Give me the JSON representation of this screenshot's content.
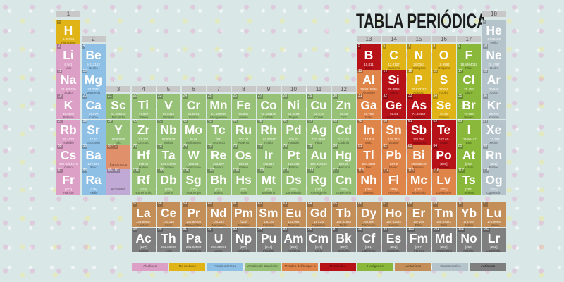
{
  "title": "TABLA PERIÓDICA",
  "group_labels": [
    "1",
    "2",
    "3",
    "4",
    "5",
    "6",
    "7",
    "8",
    "9",
    "10",
    "11",
    "12",
    "13",
    "14",
    "15",
    "16",
    "17",
    "18"
  ],
  "categories": {
    "alk": {
      "label": "Alcalinos",
      "color": "#dc9fc6"
    },
    "nm": {
      "label": "No metales",
      "color": "#e0b416"
    },
    "ae": {
      "label": "Alcalinotérreos",
      "color": "#8ec0e6"
    },
    "tm": {
      "label": "Metales de transición",
      "color": "#97c177"
    },
    "pb": {
      "label": "Metales del bloque p",
      "color": "#df854a"
    },
    "mtd": {
      "label": "Metaloides",
      "color": "#b81219"
    },
    "hal": {
      "label": "Halógenos",
      "color": "#8ab83a"
    },
    "lan": {
      "label": "Lantánidos",
      "color": "#c38e58"
    },
    "ng": {
      "label": "Gases nobles",
      "color": "#b5c3cb"
    },
    "act": {
      "label": "Actínidos",
      "color": "#7f7f7f"
    }
  },
  "legend_order": [
    "alk",
    "nm",
    "ae",
    "tm",
    "pb",
    "mtd",
    "hal",
    "lan",
    "ng",
    "act"
  ],
  "placeholders": [
    {
      "range": "57-71",
      "label": "Lantánidos",
      "color": "#e0906a",
      "period": 6,
      "group": 3
    },
    {
      "range": "89-103",
      "label": "Actínidos",
      "color": "#c0a9d4",
      "period": 7,
      "group": 3
    }
  ],
  "elements": [
    [
      "1",
      "H",
      "1.00794",
      "Hidrógeno",
      "nm",
      1,
      1
    ],
    [
      "2",
      "He",
      "4.002602",
      "Helio",
      "ng",
      1,
      18
    ],
    [
      "3",
      "Li",
      "6.941",
      "Litio",
      "alk",
      2,
      1
    ],
    [
      "4",
      "Be",
      "9.012182",
      "Berilio",
      "ae",
      2,
      2
    ],
    [
      "5",
      "B",
      "10.811",
      "Boro",
      "mtd",
      2,
      13
    ],
    [
      "6",
      "C",
      "12.0107",
      "Carbono",
      "nm",
      2,
      14
    ],
    [
      "7",
      "N",
      "14.0067",
      "Nitrógeno",
      "nm",
      2,
      15
    ],
    [
      "8",
      "O",
      "15.9994",
      "Oxígeno",
      "nm",
      2,
      16
    ],
    [
      "9",
      "F",
      "18.9984032",
      "Flúor",
      "hal",
      2,
      17
    ],
    [
      "10",
      "Ne",
      "20.1797",
      "Neón",
      "ng",
      2,
      18
    ],
    [
      "11",
      "Na",
      "22.989769",
      "Sodio",
      "alk",
      3,
      1
    ],
    [
      "12",
      "Mg",
      "24.3050",
      "Magnesio",
      "ae",
      3,
      2
    ],
    [
      "13",
      "Al",
      "26.9815386",
      "Aluminio",
      "pb",
      3,
      13
    ],
    [
      "14",
      "Si",
      "28.0855",
      "Silicio",
      "mtd",
      3,
      14
    ],
    [
      "15",
      "P",
      "30.973762",
      "Fósforo",
      "nm",
      3,
      15
    ],
    [
      "16",
      "S",
      "32.065",
      "Azufre",
      "nm",
      3,
      16
    ],
    [
      "17",
      "Cl",
      "35.453",
      "Cloro",
      "hal",
      3,
      17
    ],
    [
      "18",
      "Ar",
      "39.948",
      "Argón",
      "ng",
      3,
      18
    ],
    [
      "19",
      "K",
      "39.0983",
      "Potasio",
      "alk",
      4,
      1
    ],
    [
      "20",
      "Ca",
      "40.078",
      "Calcio",
      "ae",
      4,
      2
    ],
    [
      "21",
      "Sc",
      "44.955912",
      "Escandio",
      "tm",
      4,
      3
    ],
    [
      "22",
      "Ti",
      "47.867",
      "Titanio",
      "tm",
      4,
      4
    ],
    [
      "23",
      "V",
      "50.9415",
      "Vanadio",
      "tm",
      4,
      5
    ],
    [
      "24",
      "Cr",
      "51.9961",
      "Cromo",
      "tm",
      4,
      6
    ],
    [
      "25",
      "Mn",
      "54.938045",
      "Manganeso",
      "tm",
      4,
      7
    ],
    [
      "26",
      "Fe",
      "55.845",
      "Hierro",
      "tm",
      4,
      8
    ],
    [
      "27",
      "Co",
      "58.933195",
      "Cobalto",
      "tm",
      4,
      9
    ],
    [
      "28",
      "Ni",
      "58.6934",
      "Níquel",
      "tm",
      4,
      10
    ],
    [
      "29",
      "Cu",
      "63.546",
      "Cobre",
      "tm",
      4,
      11
    ],
    [
      "30",
      "Zn",
      "65.38",
      "Cinc",
      "tm",
      4,
      12
    ],
    [
      "31",
      "Ga",
      "69.723",
      "Galio",
      "pb",
      4,
      13
    ],
    [
      "32",
      "Ge",
      "72.64",
      "Germanio",
      "mtd",
      4,
      14
    ],
    [
      "33",
      "As",
      "74.92160",
      "Arsénico",
      "mtd",
      4,
      15
    ],
    [
      "34",
      "Se",
      "78.96",
      "Selenio",
      "nm",
      4,
      16
    ],
    [
      "35",
      "Br",
      "79.904",
      "Bromo",
      "hal",
      4,
      17
    ],
    [
      "36",
      "Kr",
      "83.798",
      "Kriptón",
      "ng",
      4,
      18
    ],
    [
      "37",
      "Rb",
      "85.4678",
      "Rubidio",
      "alk",
      5,
      1
    ],
    [
      "38",
      "Sr",
      "87.62",
      "Estroncio",
      "ae",
      5,
      2
    ],
    [
      "39",
      "Y",
      "88.90585",
      "Itrio",
      "tm",
      5,
      3
    ],
    [
      "40",
      "Zr",
      "91.224",
      "Circonio",
      "tm",
      5,
      4
    ],
    [
      "41",
      "Nb",
      "92.90638",
      "Niobio",
      "tm",
      5,
      5
    ],
    [
      "42",
      "Mo",
      "95.96",
      "Molibdeno",
      "tm",
      5,
      6
    ],
    [
      "43",
      "Tc",
      "[98]",
      "Tecnecio",
      "tm",
      5,
      7
    ],
    [
      "44",
      "Ru",
      "101.07",
      "Rutenio",
      "tm",
      5,
      8
    ],
    [
      "45",
      "Rh",
      "102.90550",
      "Rodio",
      "tm",
      5,
      9
    ],
    [
      "46",
      "Pd",
      "106.42",
      "Paladio",
      "tm",
      5,
      10
    ],
    [
      "47",
      "Ag",
      "107.8682",
      "Plata",
      "tm",
      5,
      11
    ],
    [
      "48",
      "Cd",
      "112.411",
      "Cadmio",
      "tm",
      5,
      12
    ],
    [
      "49",
      "In",
      "114.818",
      "Indio",
      "pb",
      5,
      13
    ],
    [
      "50",
      "Sn",
      "118.710",
      "Estaño",
      "pb",
      5,
      14
    ],
    [
      "51",
      "Sb",
      "121.760",
      "Antimonio",
      "mtd",
      5,
      15
    ],
    [
      "52",
      "Te",
      "127.60",
      "Telurio",
      "mtd",
      5,
      16
    ],
    [
      "53",
      "I",
      "126.90447",
      "Yodo",
      "hal",
      5,
      17
    ],
    [
      "54",
      "Xe",
      "131.293",
      "Xenón",
      "ng",
      5,
      18
    ],
    [
      "55",
      "Cs",
      "132.9054519",
      "Cesio",
      "alk",
      6,
      1
    ],
    [
      "56",
      "Ba",
      "137.327",
      "Bario",
      "ae",
      6,
      2
    ],
    [
      "72",
      "Hf",
      "178.49",
      "Hafnio",
      "tm",
      6,
      4
    ],
    [
      "73",
      "Ta",
      "180.94788",
      "Tantalio",
      "tm",
      6,
      5
    ],
    [
      "74",
      "W",
      "183.84",
      "Wolframio",
      "tm",
      6,
      6
    ],
    [
      "75",
      "Re",
      "186.207",
      "Renio",
      "tm",
      6,
      7
    ],
    [
      "76",
      "Os",
      "190.23",
      "Osmio",
      "tm",
      6,
      8
    ],
    [
      "77",
      "Ir",
      "192.217",
      "Iridio",
      "tm",
      6,
      9
    ],
    [
      "78",
      "Pt",
      "195.084",
      "Platino",
      "tm",
      6,
      10
    ],
    [
      "79",
      "Au",
      "196.966569",
      "Oro",
      "tm",
      6,
      11
    ],
    [
      "80",
      "Hg",
      "200.59",
      "Mercurio",
      "tm",
      6,
      12
    ],
    [
      "81",
      "Tl",
      "204.3833",
      "Talio",
      "pb",
      6,
      13
    ],
    [
      "82",
      "Pb",
      "207.2",
      "Plomo",
      "pb",
      6,
      14
    ],
    [
      "83",
      "Bi",
      "208.98040",
      "Bismuto",
      "pb",
      6,
      15
    ],
    [
      "84",
      "Po",
      "[209]",
      "Polonio",
      "mtd",
      6,
      16
    ],
    [
      "85",
      "At",
      "[210]",
      "Astato",
      "hal",
      6,
      17
    ],
    [
      "86",
      "Rn",
      "[222]",
      "Radón",
      "ng",
      6,
      18
    ],
    [
      "87",
      "Fr",
      "[223]",
      "Francio",
      "alk",
      7,
      1
    ],
    [
      "88",
      "Ra",
      "[226]",
      "Radio",
      "ae",
      7,
      2
    ],
    [
      "104",
      "Rf",
      "[267]",
      "Rutherfordio",
      "tm",
      7,
      4
    ],
    [
      "105",
      "Db",
      "[268]",
      "Dubnio",
      "tm",
      7,
      5
    ],
    [
      "106",
      "Sg",
      "[271]",
      "Seaborgio",
      "tm",
      7,
      6
    ],
    [
      "107",
      "Bh",
      "[272]",
      "Bohrio",
      "tm",
      7,
      7
    ],
    [
      "108",
      "Hs",
      "[270]",
      "Hasio",
      "tm",
      7,
      8
    ],
    [
      "109",
      "Mt",
      "[276]",
      "Meitnerio",
      "tm",
      7,
      9
    ],
    [
      "110",
      "Ds",
      "[281]",
      "Darmstatio",
      "tm",
      7,
      10
    ],
    [
      "111",
      "Rg",
      "[280]",
      "Roentgenio",
      "tm",
      7,
      11
    ],
    [
      "112",
      "Cn",
      "[285]",
      "Copernicio",
      "tm",
      7,
      12
    ],
    [
      "113",
      "Nh",
      "[286]",
      "Nihonio",
      "pb",
      7,
      13
    ],
    [
      "114",
      "Fl",
      "[289]",
      "Flerovio",
      "pb",
      7,
      14
    ],
    [
      "115",
      "Mc",
      "[290]",
      "Moscovio",
      "pb",
      7,
      15
    ],
    [
      "116",
      "Lv",
      "[293]",
      "Livermorio",
      "pb",
      7,
      16
    ],
    [
      "117",
      "Ts",
      "[294]",
      "Teneso",
      "hal",
      7,
      17
    ],
    [
      "118",
      "Og",
      "[294]",
      "Oganesón",
      "ng",
      7,
      18
    ]
  ],
  "lanthanides": [
    [
      "57",
      "La",
      "138.90547",
      "Lantano"
    ],
    [
      "58",
      "Ce",
      "140.116",
      "Cerio"
    ],
    [
      "59",
      "Pr",
      "140.90765",
      "Praseodimio"
    ],
    [
      "60",
      "Nd",
      "144.242",
      "Neodimio"
    ],
    [
      "61",
      "Pm",
      "[145]",
      "Prometio"
    ],
    [
      "62",
      "Sm",
      "150.36",
      "Samario"
    ],
    [
      "63",
      "Eu",
      "151.964",
      "Europio"
    ],
    [
      "64",
      "Gd",
      "157.25",
      "Gadolinio"
    ],
    [
      "65",
      "Tb",
      "158.92535",
      "Terbio"
    ],
    [
      "66",
      "Dy",
      "162.500",
      "Disprosio"
    ],
    [
      "67",
      "Ho",
      "164.93032",
      "Holmio"
    ],
    [
      "68",
      "Er",
      "167.259",
      "Erbio"
    ],
    [
      "69",
      "Tm",
      "168.93421",
      "Tulio"
    ],
    [
      "70",
      "Yb",
      "173.054",
      "Iterbio"
    ],
    [
      "71",
      "Lu",
      "174.9668",
      "Lutecio"
    ]
  ],
  "actinides": [
    [
      "89",
      "Ac",
      "[227]",
      "Actinio"
    ],
    [
      "90",
      "Th",
      "232.03806",
      "Torio"
    ],
    [
      "91",
      "Pa",
      "231.03588",
      "Protactinio"
    ],
    [
      "92",
      "U",
      "238.02891",
      "Uranio"
    ],
    [
      "93",
      "Np",
      "[237]",
      "Neptunio"
    ],
    [
      "94",
      "Pu",
      "[244]",
      "Plutonio"
    ],
    [
      "95",
      "Am",
      "[243]",
      "Americio"
    ],
    [
      "96",
      "Cm",
      "[247]",
      "Curio"
    ],
    [
      "97",
      "Bk",
      "[247]",
      "Berkelio"
    ],
    [
      "98",
      "Cf",
      "[251]",
      "Californio"
    ],
    [
      "99",
      "Es",
      "[252]",
      "Einstenio"
    ],
    [
      "100",
      "Fm",
      "[257]",
      "Fermio"
    ],
    [
      "101",
      "Md",
      "[258]",
      "Mendelevio"
    ],
    [
      "102",
      "No",
      "[259]",
      "Nobelio"
    ],
    [
      "103",
      "Lr",
      "[262]",
      "Lawrencio"
    ]
  ]
}
